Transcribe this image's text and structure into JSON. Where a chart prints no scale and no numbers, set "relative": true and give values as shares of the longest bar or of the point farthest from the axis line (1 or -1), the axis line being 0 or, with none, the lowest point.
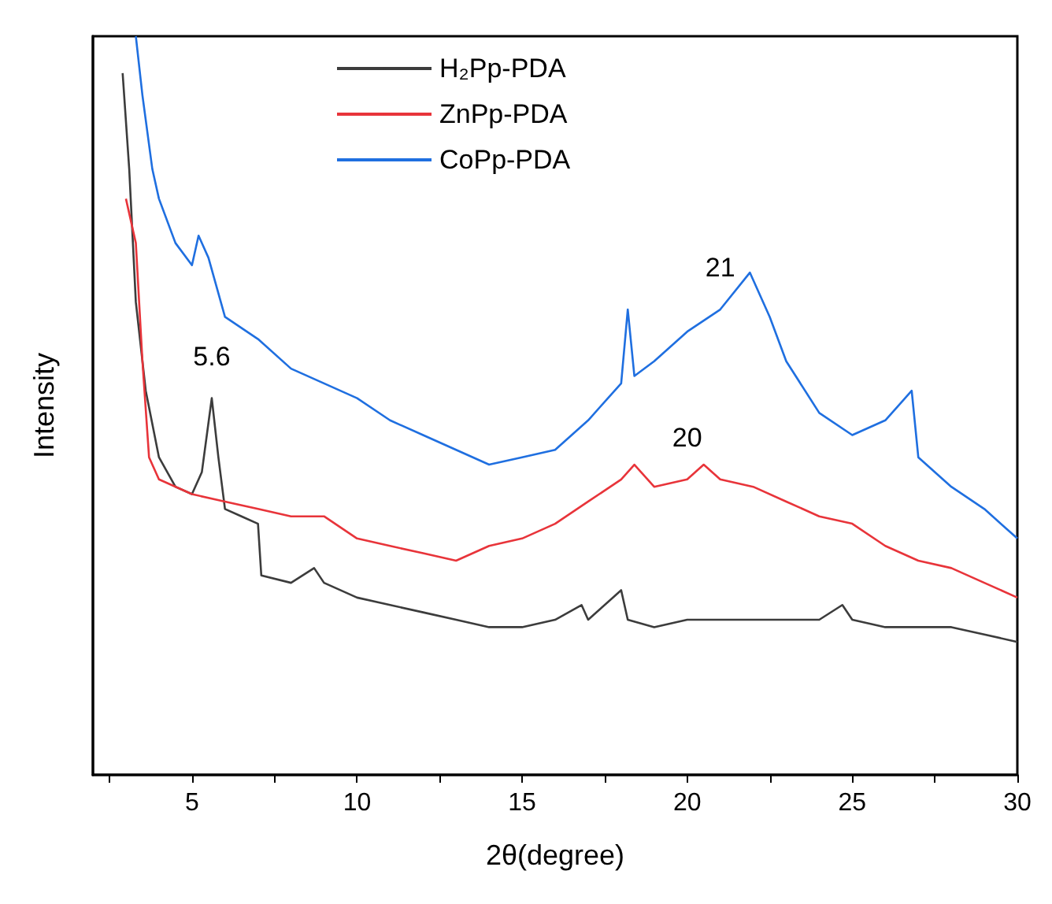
{
  "chart_data": {
    "type": "line",
    "xlabel": "2θ(degree)",
    "ylabel": "Intensity",
    "relative": true,
    "tick_labels": "x",
    "grid": false,
    "legend": "top",
    "marker": "none",
    "line_style": "solid",
    "xlim": [
      2,
      30
    ],
    "xticks": [
      {
        "value": 2.5,
        "label": null
      },
      5,
      {
        "value": 7.5,
        "label": null
      },
      10,
      {
        "value": 12.5,
        "label": null
      },
      15,
      {
        "value": 17.5,
        "label": null
      },
      20,
      {
        "value": 22.5,
        "label": null
      },
      25,
      {
        "value": 27.5,
        "label": null
      },
      30
    ],
    "annotations": [
      {
        "text": "5.6",
        "x": 5.6,
        "y": 0.51
      },
      {
        "text": "21",
        "x": 21,
        "y": 0.63
      },
      {
        "text": "20",
        "x": 20,
        "y": 0.4
      }
    ],
    "series": [
      {
        "name": "H₂Pp-PDA",
        "color": "#3c3c3c",
        "x": [
          2.9,
          3.1,
          3.3,
          3.6,
          4,
          4.5,
          5,
          5.3,
          5.6,
          5.8,
          6,
          6.5,
          7,
          7.1,
          8,
          8.7,
          9,
          10,
          11,
          12,
          13,
          14,
          15,
          16,
          16.8,
          17,
          18,
          18.2,
          19,
          20,
          21,
          22,
          23,
          24,
          24.7,
          25,
          26,
          27,
          28,
          29,
          30
        ],
        "values": [
          0.95,
          0.82,
          0.64,
          0.52,
          0.43,
          0.39,
          0.38,
          0.41,
          0.51,
          0.43,
          0.36,
          0.35,
          0.34,
          0.27,
          0.26,
          0.28,
          0.26,
          0.24,
          0.23,
          0.22,
          0.21,
          0.2,
          0.2,
          0.21,
          0.23,
          0.21,
          0.25,
          0.21,
          0.2,
          0.21,
          0.21,
          0.21,
          0.21,
          0.21,
          0.23,
          0.21,
          0.2,
          0.2,
          0.2,
          0.19,
          0.18
        ]
      },
      {
        "name": "ZnPp-PDA",
        "color": "#e8343a",
        "x": [
          3,
          3.3,
          3.5,
          3.7,
          4,
          5,
          6,
          7,
          8,
          9,
          10,
          11,
          12,
          13,
          14,
          15,
          16,
          17,
          18,
          18.4,
          19,
          20,
          20.5,
          21,
          22,
          23,
          24,
          25,
          26,
          27,
          28,
          29,
          30
        ],
        "values": [
          0.78,
          0.72,
          0.56,
          0.43,
          0.4,
          0.38,
          0.37,
          0.36,
          0.35,
          0.35,
          0.32,
          0.31,
          0.3,
          0.29,
          0.31,
          0.32,
          0.34,
          0.37,
          0.4,
          0.42,
          0.39,
          0.4,
          0.42,
          0.4,
          0.39,
          0.37,
          0.35,
          0.34,
          0.31,
          0.29,
          0.28,
          0.26,
          0.24
        ]
      },
      {
        "name": "CoPp-PDA",
        "color": "#1f6fe0",
        "x": [
          3.3,
          3.5,
          3.8,
          4,
          4.5,
          5,
          5.2,
          5.5,
          6,
          7,
          8,
          9,
          10,
          11,
          12,
          13,
          14,
          15,
          16,
          17,
          18,
          18.2,
          18.4,
          19,
          20,
          21,
          21.9,
          22.5,
          23,
          24,
          25,
          26,
          26.8,
          27,
          28,
          29,
          30
        ],
        "values": [
          1,
          0.92,
          0.82,
          0.78,
          0.72,
          0.69,
          0.73,
          0.7,
          0.62,
          0.59,
          0.55,
          0.53,
          0.51,
          0.48,
          0.46,
          0.44,
          0.42,
          0.43,
          0.44,
          0.48,
          0.53,
          0.63,
          0.54,
          0.56,
          0.6,
          0.63,
          0.68,
          0.62,
          0.56,
          0.49,
          0.46,
          0.48,
          0.52,
          0.43,
          0.39,
          0.36,
          0.32
        ]
      }
    ]
  }
}
